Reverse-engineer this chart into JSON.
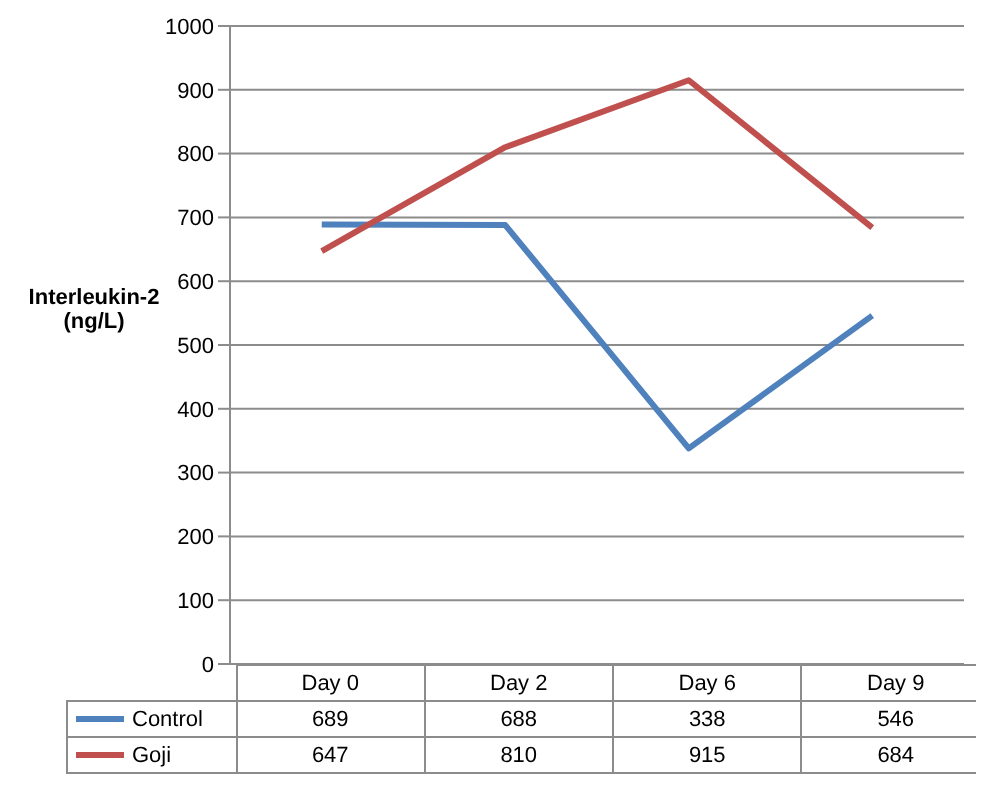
{
  "chart_data": {
    "type": "line",
    "ylabel": "Interleukin-2\n(ng/L)",
    "categories": [
      "Day 0",
      "Day 2",
      "Day 6",
      "Day 9"
    ],
    "series": [
      {
        "name": "Control",
        "color": "#4f81bd",
        "values": [
          689,
          688,
          338,
          546
        ]
      },
      {
        "name": "Goji",
        "color": "#c0504d",
        "values": [
          647,
          810,
          915,
          684
        ]
      }
    ],
    "ylim": [
      0,
      1000
    ],
    "yticks": [
      0,
      100,
      200,
      300,
      400,
      500,
      600,
      700,
      800,
      900,
      1000
    ],
    "grid": "y",
    "legend": "bottom",
    "data_labels": true,
    "marker": "none",
    "line_style": "solid"
  }
}
